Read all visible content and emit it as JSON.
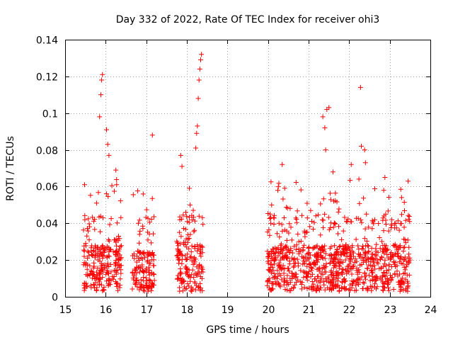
{
  "chart_data": {
    "type": "scatter",
    "title": "Day 332 of 2022, Rate Of TEC Index for receiver ohi3",
    "xlabel": "GPS time / hours",
    "ylabel": "ROTI / TECUs",
    "xlim": [
      15,
      24
    ],
    "ylim": [
      0,
      0.14
    ],
    "grid": true,
    "marker": "+",
    "color": "#ff0000",
    "xticks": [
      "15",
      "16",
      "17",
      "18",
      "19",
      "20",
      "21",
      "22",
      "23",
      "24"
    ],
    "yticks": [
      "0",
      "0.02",
      "0.04",
      "0.06",
      "0.08",
      "0.1",
      "0.12",
      "0.14"
    ],
    "clusters": [
      {
        "x_range": [
          15.45,
          16.4
        ],
        "base_max": 0.028
      },
      {
        "x_range": [
          16.65,
          17.2
        ],
        "base_max": 0.025
      },
      {
        "x_range": [
          17.75,
          18.4
        ],
        "base_max": 0.03
      },
      {
        "x_range": [
          19.98,
          23.5
        ],
        "base_max": 0.028
      }
    ],
    "notable_points": [
      {
        "x": 15.48,
        "y": 0.061
      },
      {
        "x": 15.85,
        "y": 0.098
      },
      {
        "x": 15.88,
        "y": 0.11
      },
      {
        "x": 15.9,
        "y": 0.118
      },
      {
        "x": 15.92,
        "y": 0.121
      },
      {
        "x": 16.02,
        "y": 0.091
      },
      {
        "x": 16.05,
        "y": 0.083
      },
      {
        "x": 16.08,
        "y": 0.077
      },
      {
        "x": 16.25,
        "y": 0.069
      },
      {
        "x": 16.27,
        "y": 0.061
      },
      {
        "x": 17.15,
        "y": 0.088
      },
      {
        "x": 17.85,
        "y": 0.077
      },
      {
        "x": 17.88,
        "y": 0.071
      },
      {
        "x": 18.22,
        "y": 0.081
      },
      {
        "x": 18.24,
        "y": 0.089
      },
      {
        "x": 18.26,
        "y": 0.093
      },
      {
        "x": 18.28,
        "y": 0.108
      },
      {
        "x": 18.3,
        "y": 0.118
      },
      {
        "x": 18.32,
        "y": 0.124
      },
      {
        "x": 18.34,
        "y": 0.129
      },
      {
        "x": 18.36,
        "y": 0.132
      },
      {
        "x": 20.35,
        "y": 0.072
      },
      {
        "x": 21.35,
        "y": 0.098
      },
      {
        "x": 21.4,
        "y": 0.092
      },
      {
        "x": 21.45,
        "y": 0.102
      },
      {
        "x": 21.5,
        "y": 0.103
      },
      {
        "x": 21.42,
        "y": 0.08
      },
      {
        "x": 21.6,
        "y": 0.068
      },
      {
        "x": 22.05,
        "y": 0.072
      },
      {
        "x": 22.28,
        "y": 0.114
      },
      {
        "x": 22.3,
        "y": 0.082
      },
      {
        "x": 22.38,
        "y": 0.08
      },
      {
        "x": 22.4,
        "y": 0.073
      },
      {
        "x": 22.85,
        "y": 0.058
      },
      {
        "x": 22.88,
        "y": 0.065
      },
      {
        "x": 23.45,
        "y": 0.063
      }
    ]
  }
}
